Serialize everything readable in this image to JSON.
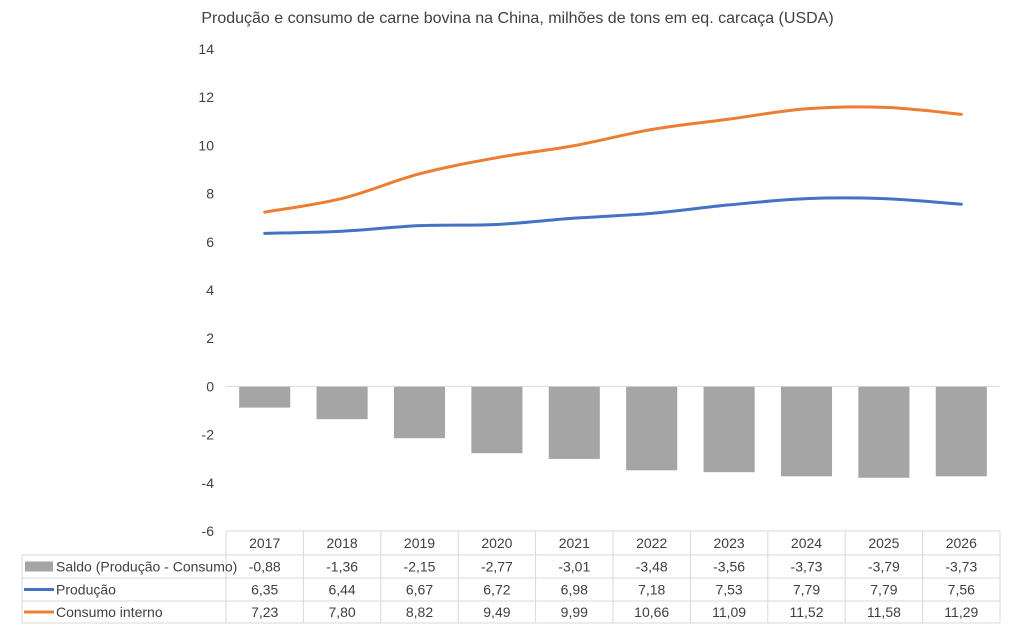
{
  "chart_data": {
    "type": "bar+line",
    "title": "Produção e consumo de carne bovina na China, milhões de tons em eq. carcaça (USDA)",
    "categories": [
      "2017",
      "2018",
      "2019",
      "2020",
      "2021",
      "2022",
      "2023",
      "2024",
      "2025",
      "2026"
    ],
    "ylim": [
      -6,
      14
    ],
    "yticks": [
      14,
      12,
      10,
      8,
      6,
      4,
      2,
      0,
      -2,
      -4,
      -6
    ],
    "grid": false,
    "legend": "data-table",
    "series": [
      {
        "name": "Saldo (Produção - Consumo)",
        "type": "bar",
        "color": "#a5a5a5",
        "values": [
          -0.88,
          -1.36,
          -2.15,
          -2.77,
          -3.01,
          -3.48,
          -3.56,
          -3.73,
          -3.79,
          -3.73
        ],
        "labels": [
          "-0,88",
          "-1,36",
          "-2,15",
          "-2,77",
          "-3,01",
          "-3,48",
          "-3,56",
          "-3,73",
          "-3,79",
          "-3,73"
        ]
      },
      {
        "name": "Produção",
        "type": "line",
        "color": "#4472c4",
        "values": [
          6.35,
          6.44,
          6.67,
          6.72,
          6.98,
          7.18,
          7.53,
          7.79,
          7.79,
          7.56
        ],
        "labels": [
          "6,35",
          "6,44",
          "6,67",
          "6,72",
          "6,98",
          "7,18",
          "7,53",
          "7,79",
          "7,79",
          "7,56"
        ]
      },
      {
        "name": "Consumo interno",
        "type": "line",
        "color": "#ed7d31",
        "values": [
          7.23,
          7.8,
          8.82,
          9.49,
          9.99,
          10.66,
          11.09,
          11.52,
          11.58,
          11.29
        ],
        "labels": [
          "7,23",
          "7,80",
          "8,82",
          "9,49",
          "9,99",
          "10,66",
          "11,09",
          "11,52",
          "11,58",
          "11,29"
        ]
      }
    ]
  }
}
